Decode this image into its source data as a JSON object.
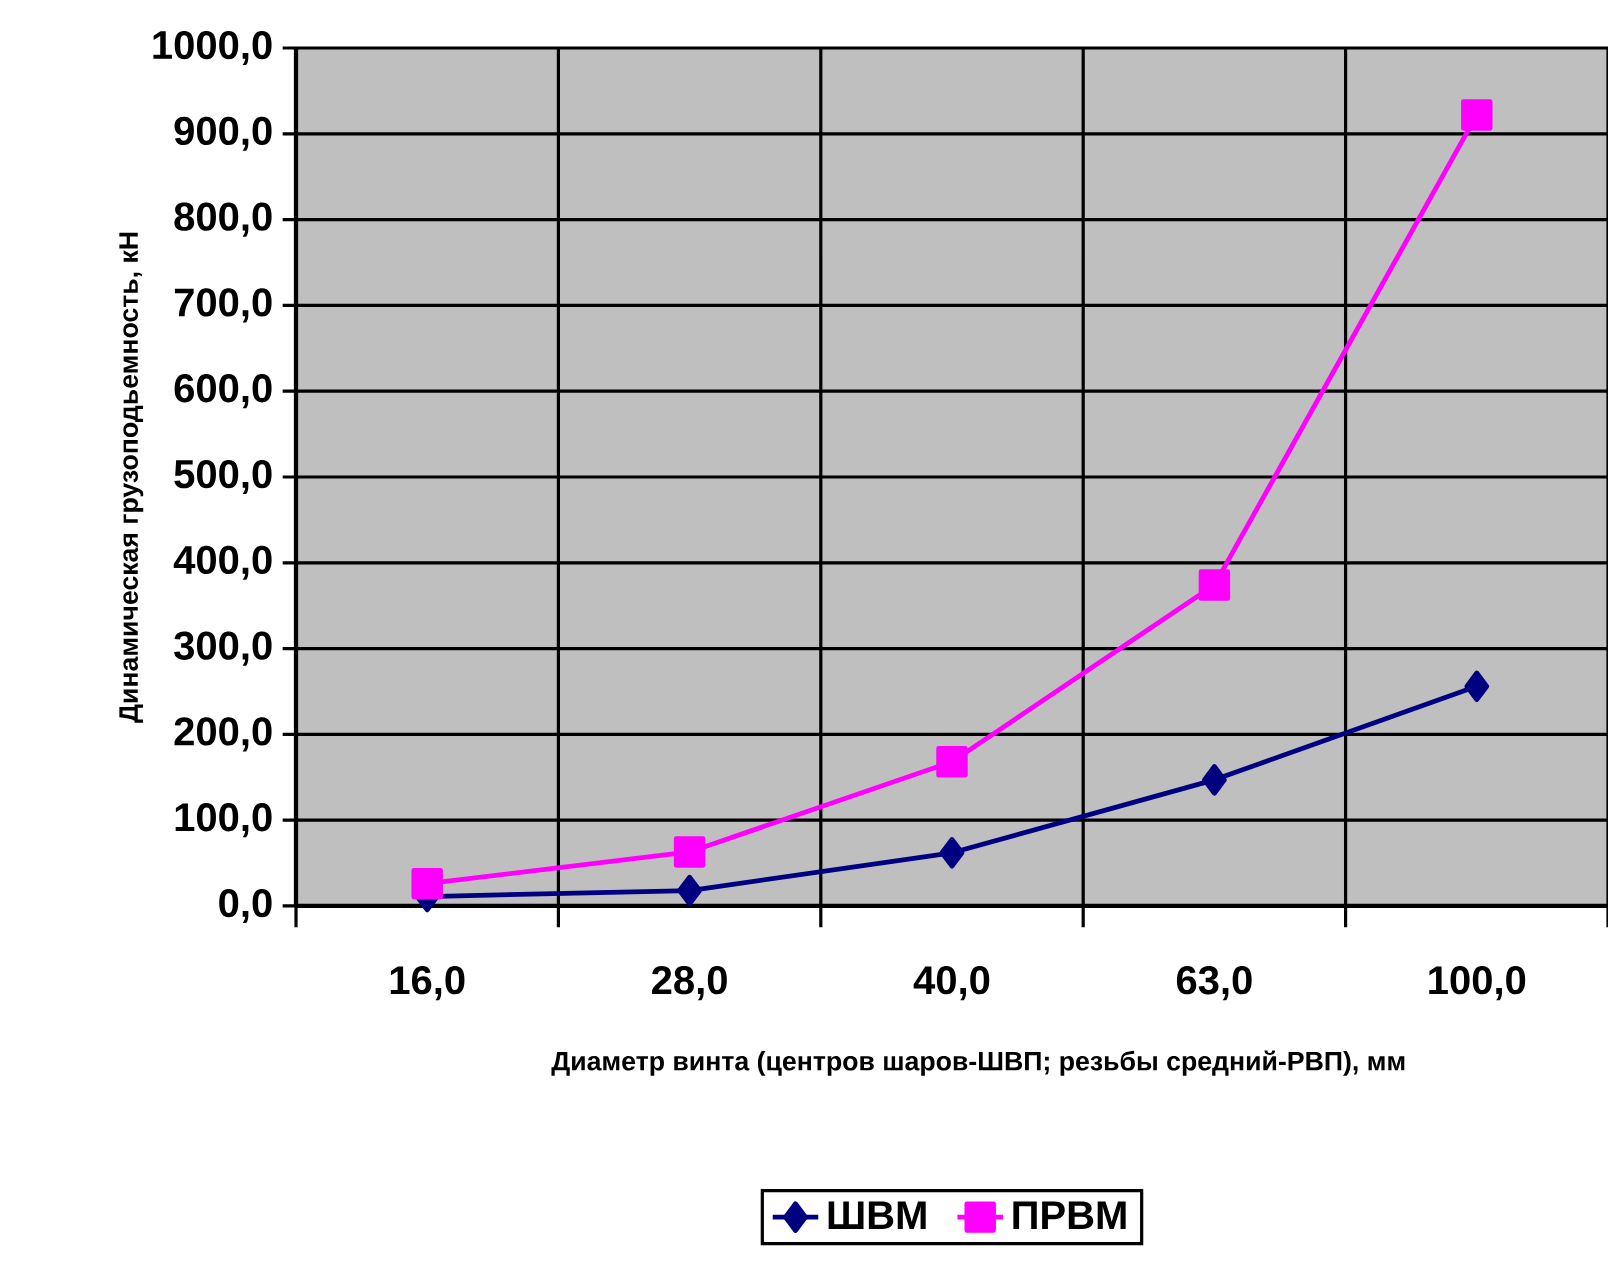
{
  "chart_data": {
    "type": "line",
    "xlabel": "Диаметр винта (центров шаров-ШВП; резьбы средний-РВП), мм",
    "ylabel": "Динамическая грузоподьемность, кН",
    "categories": [
      "16,0",
      "28,0",
      "40,0",
      "63,0",
      "100,0"
    ],
    "series": [
      {
        "name": "ШВМ",
        "color": "#000080",
        "marker": "diamond",
        "values": [
          11,
          18,
          62,
          147,
          256
        ]
      },
      {
        "name": "ПРВМ",
        "color": "#ff00ff",
        "marker": "square",
        "values": [
          26,
          63,
          168,
          374,
          922
        ]
      }
    ],
    "ylim": [
      0,
      1000
    ],
    "yticks": [
      {
        "value": 0,
        "label": "0,0"
      },
      {
        "value": 100,
        "label": "100,0"
      },
      {
        "value": 200,
        "label": "200,0"
      },
      {
        "value": 300,
        "label": "300,0"
      },
      {
        "value": 400,
        "label": "400,0"
      },
      {
        "value": 500,
        "label": "500,0"
      },
      {
        "value": 600,
        "label": "600,0"
      },
      {
        "value": 700,
        "label": "700,0"
      },
      {
        "value": 800,
        "label": "800,0"
      },
      {
        "value": 900,
        "label": "900,0"
      },
      {
        "value": 1000,
        "label": "1000,0"
      }
    ],
    "grid": true,
    "legend": "bottom",
    "line_style": "solid"
  }
}
